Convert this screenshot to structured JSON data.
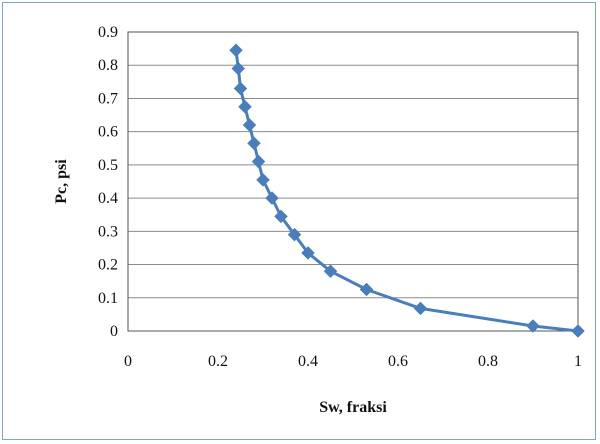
{
  "chart_data": {
    "type": "scatter",
    "title": "",
    "xlabel": "Sw, fraksi",
    "ylabel": "Pc, psi",
    "xlim": [
      0,
      1
    ],
    "ylim": [
      0,
      0.9
    ],
    "x_ticks": [
      "0",
      "0.2",
      "0.4",
      "0.6",
      "0.8",
      "1"
    ],
    "x_tick_values": [
      0,
      0.2,
      0.4,
      0.6,
      0.8,
      1
    ],
    "y_ticks": [
      "0",
      "0.1",
      "0.2",
      "0.3",
      "0.4",
      "0.5",
      "0.6",
      "0.7",
      "0.8",
      "0.9"
    ],
    "y_tick_values": [
      0,
      0.1,
      0.2,
      0.3,
      0.4,
      0.5,
      0.6,
      0.7,
      0.8,
      0.9
    ],
    "grid": "horizontal",
    "legend": "none",
    "series": [
      {
        "color": "#4a7ebb",
        "marker": "diamond",
        "x": [
          0.24,
          0.245,
          0.25,
          0.26,
          0.27,
          0.28,
          0.29,
          0.3,
          0.32,
          0.34,
          0.37,
          0.4,
          0.45,
          0.53,
          0.65,
          0.9,
          1.0
        ],
        "y": [
          0.845,
          0.79,
          0.73,
          0.675,
          0.62,
          0.565,
          0.51,
          0.455,
          0.4,
          0.345,
          0.29,
          0.235,
          0.18,
          0.125,
          0.068,
          0.015,
          0.0
        ]
      }
    ]
  }
}
